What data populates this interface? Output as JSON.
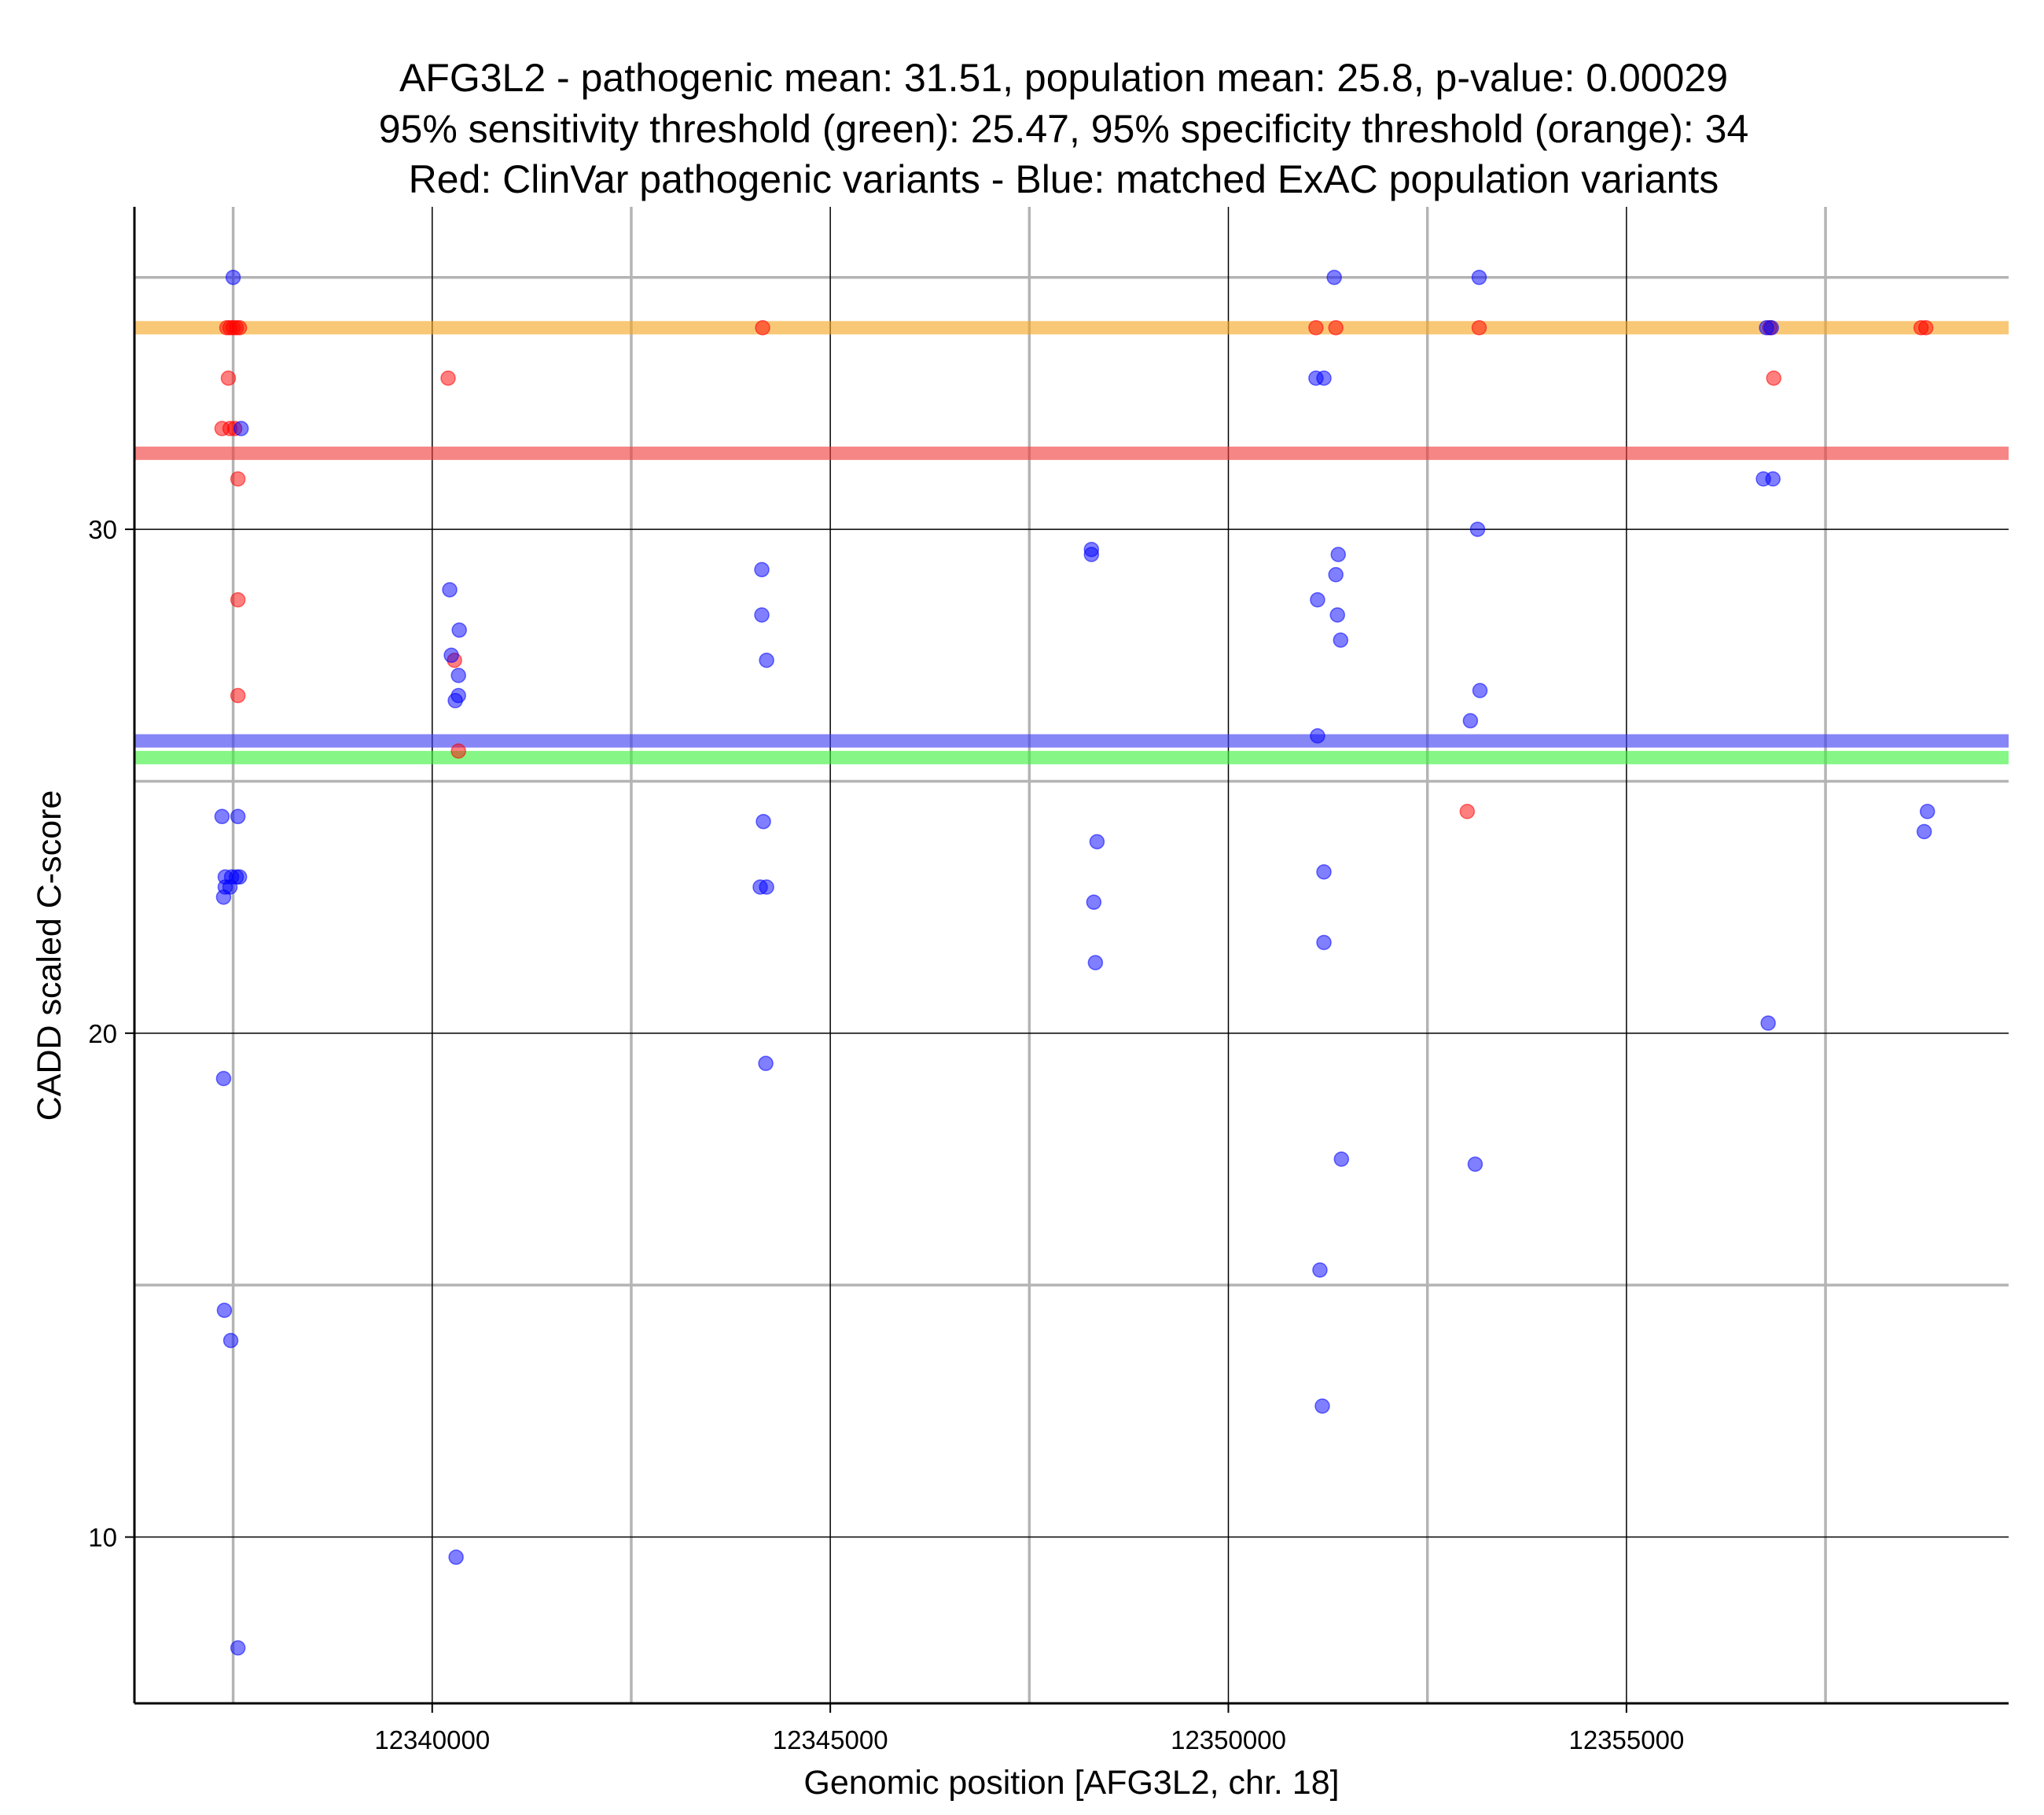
{
  "chart_data": {
    "type": "scatter",
    "title_lines": [
      "AFG3L2 - pathogenic mean: 31.51, population mean: 25.8, p-value: 0.00029",
      "95% sensitivity threshold (green): 25.47, 95% specificity threshold (orange): 34",
      "Red: ClinVar pathogenic variants - Blue: matched ExAC population variants"
    ],
    "xlabel": "Genomic position [AFG3L2, chr. 18]",
    "ylabel": "CADD scaled C-score",
    "xlim": [
      12336260,
      12359800
    ],
    "ylim": [
      6.7,
      36.4
    ],
    "x_major_ticks": [
      12340000,
      12345000,
      12350000,
      12355000
    ],
    "x_minor_ticks": [
      12337500,
      12342500,
      12347500,
      12352500,
      12357500
    ],
    "y_major_ticks": [
      10,
      20,
      30
    ],
    "y_minor_ticks": [
      15,
      25,
      35
    ],
    "x_tick_labels": [
      "12340000",
      "12345000",
      "12350000",
      "12355000"
    ],
    "y_tick_labels": [
      "10",
      "20",
      "30"
    ],
    "reference_lines": [
      {
        "name": "specificity-threshold",
        "value": 34,
        "color": "#f5a623"
      },
      {
        "name": "pathogenic-mean",
        "value": 31.51,
        "color": "#f03c3c"
      },
      {
        "name": "population-mean",
        "value": 25.8,
        "color": "#3c3cf0"
      },
      {
        "name": "sensitivity-threshold",
        "value": 25.47,
        "color": "#3cf03c"
      }
    ],
    "colors": {
      "pathogenic": "#ff0000",
      "population": "#0000ff"
    },
    "series": [
      {
        "name": "ClinVar pathogenic",
        "color": "#ff0000",
        "points": [
          [
            12337420,
            34
          ],
          [
            12337460,
            34
          ],
          [
            12337500,
            34
          ],
          [
            12337540,
            34
          ],
          [
            12337580,
            34
          ],
          [
            12337440,
            33
          ],
          [
            12337360,
            32
          ],
          [
            12337460,
            32
          ],
          [
            12337520,
            32
          ],
          [
            12337560,
            31
          ],
          [
            12337560,
            28.6
          ],
          [
            12337560,
            26.7
          ],
          [
            12340200,
            33
          ],
          [
            12340280,
            27.4
          ],
          [
            12340330,
            25.6
          ],
          [
            12351350,
            34
          ],
          [
            12351100,
            34
          ],
          [
            12353000,
            24.4
          ],
          [
            12356800,
            34
          ],
          [
            12356850,
            33
          ],
          [
            12358700,
            34
          ],
          [
            12358760,
            34
          ],
          [
            12344150,
            34
          ],
          [
            12353150,
            34
          ]
        ]
      },
      {
        "name": "ExAC population",
        "color": "#0000ff",
        "points": [
          [
            12337500,
            35
          ],
          [
            12337600,
            32
          ],
          [
            12337360,
            24.3
          ],
          [
            12337560,
            24.3
          ],
          [
            12337400,
            23.1
          ],
          [
            12337480,
            23.1
          ],
          [
            12337540,
            23.1
          ],
          [
            12337580,
            23.1
          ],
          [
            12337400,
            22.9
          ],
          [
            12337460,
            22.9
          ],
          [
            12337380,
            22.7
          ],
          [
            12337380,
            19.1
          ],
          [
            12337390,
            14.5
          ],
          [
            12337470,
            13.9
          ],
          [
            12337560,
            7.8
          ],
          [
            12340220,
            28.8
          ],
          [
            12340340,
            28
          ],
          [
            12340240,
            27.5
          ],
          [
            12340330,
            27.1
          ],
          [
            12340330,
            26.7
          ],
          [
            12340290,
            26.6
          ],
          [
            12340300,
            9.6
          ],
          [
            12344140,
            29.2
          ],
          [
            12344140,
            28.3
          ],
          [
            12344200,
            27.4
          ],
          [
            12344160,
            24.2
          ],
          [
            12344120,
            22.9
          ],
          [
            12344200,
            22.9
          ],
          [
            12344190,
            19.4
          ],
          [
            12348280,
            29.6
          ],
          [
            12348280,
            29.5
          ],
          [
            12348350,
            23.8
          ],
          [
            12348310,
            22.6
          ],
          [
            12348330,
            21.4
          ],
          [
            12351330,
            35
          ],
          [
            12351100,
            33
          ],
          [
            12351200,
            33
          ],
          [
            12351380,
            29.5
          ],
          [
            12351350,
            29.1
          ],
          [
            12351120,
            28.6
          ],
          [
            12351370,
            28.3
          ],
          [
            12351410,
            27.8
          ],
          [
            12351120,
            25.9
          ],
          [
            12351200,
            23.2
          ],
          [
            12351200,
            21.8
          ],
          [
            12351420,
            17.5
          ],
          [
            12351150,
            15.3
          ],
          [
            12351180,
            12.6
          ],
          [
            12353150,
            35
          ],
          [
            12353130,
            30
          ],
          [
            12353160,
            26.8
          ],
          [
            12353040,
            26.2
          ],
          [
            12353100,
            17.4
          ],
          [
            12356760,
            34
          ],
          [
            12356820,
            34
          ],
          [
            12356720,
            31
          ],
          [
            12356840,
            31
          ],
          [
            12356780,
            20.2
          ],
          [
            12358780,
            24.4
          ],
          [
            12358740,
            24
          ]
        ]
      }
    ]
  }
}
